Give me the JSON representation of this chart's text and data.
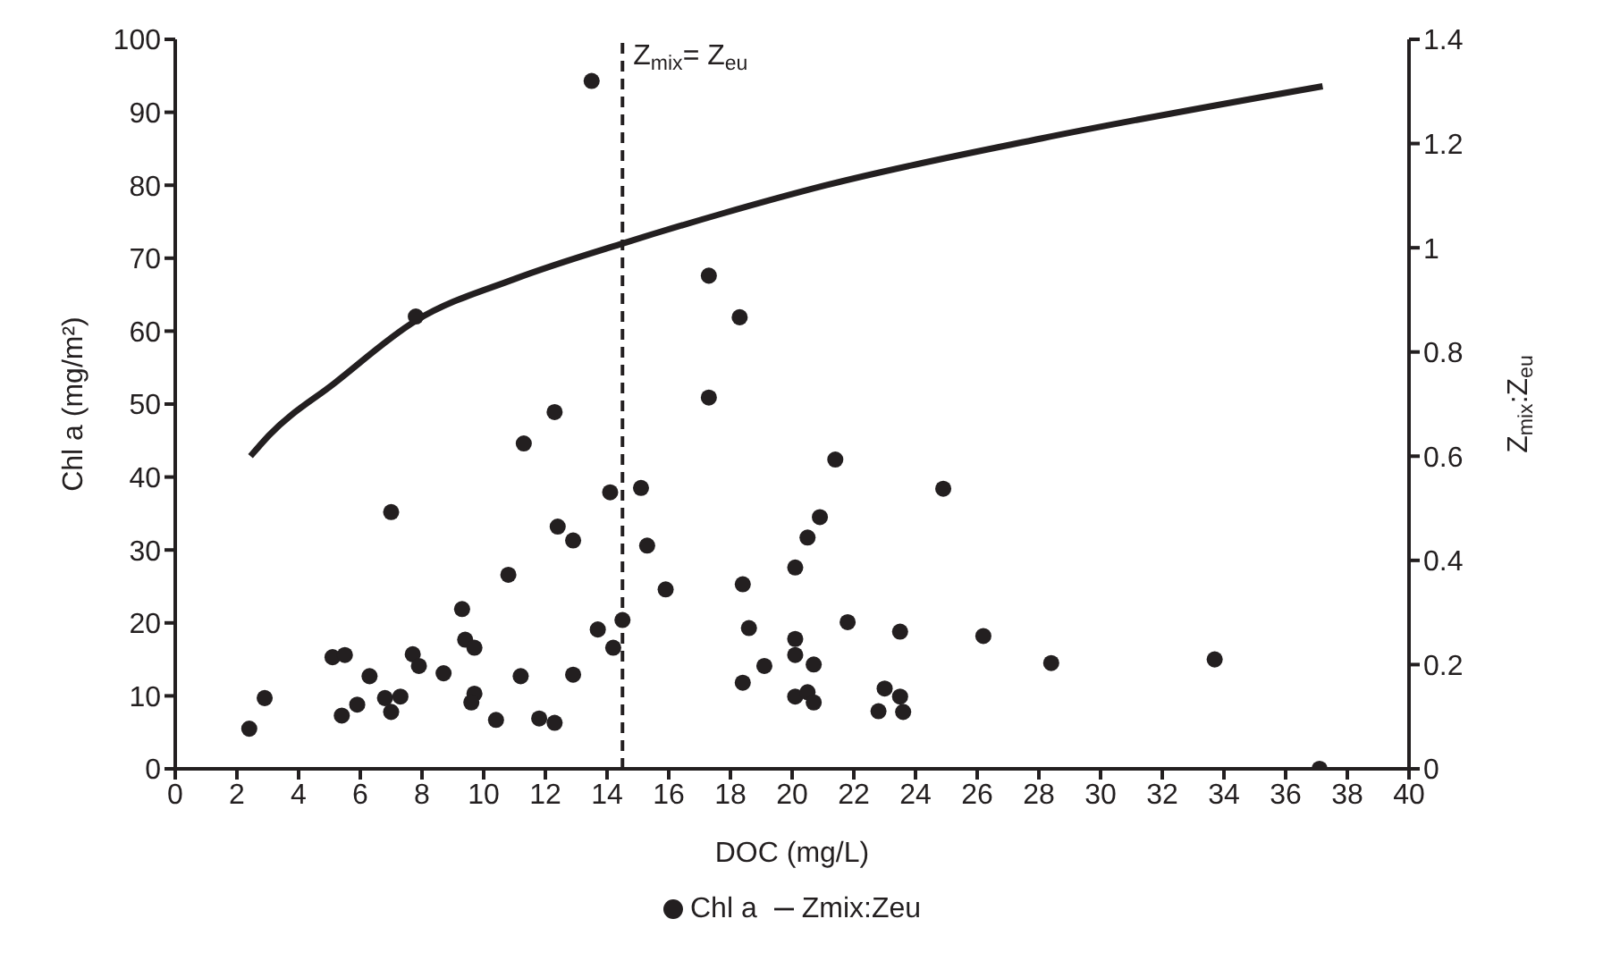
{
  "chart_data": {
    "type": "scatter",
    "xlabel": "DOC (mg/L)",
    "ylabel": "Chl a (mg/m²)",
    "y2label": "Z$_{mix}$:Z$_{eu}$",
    "xlim": [
      0,
      40
    ],
    "xticks": [
      0,
      2,
      4,
      6,
      8,
      10,
      12,
      14,
      16,
      18,
      20,
      22,
      24,
      26,
      28,
      30,
      32,
      34,
      36,
      38,
      40
    ],
    "ylim": [
      0,
      100
    ],
    "yticks": [
      0,
      10,
      20,
      30,
      40,
      50,
      60,
      70,
      80,
      90,
      100
    ],
    "y2lim": [
      0,
      1.4
    ],
    "y2ticks": [
      0,
      0.2,
      0.4,
      0.6,
      0.8,
      1,
      1.2,
      1.4
    ],
    "grid": false,
    "legend": "bottom",
    "ref_lines": [
      {
        "axis": "x",
        "value": 14.5,
        "label": "Z$_{mix}$= Z$_{eu}$",
        "line_style": "dashed",
        "color": "#231f20"
      }
    ],
    "series": [
      {
        "name": "Chl a",
        "color": "#231f20",
        "marker": "circle",
        "x": [
          2.4,
          2.9,
          5.1,
          5.5,
          5.4,
          5.9,
          6.3,
          6.8,
          7.0,
          7.3,
          7.0,
          7.7,
          7.9,
          7.8,
          8.7,
          9.3,
          9.4,
          9.7,
          9.7,
          9.6,
          10.4,
          10.8,
          11.2,
          11.3,
          11.8,
          12.3,
          12.3,
          12.4,
          12.9,
          12.9,
          13.5,
          13.7,
          14.1,
          14.2,
          14.5,
          15.1,
          15.3,
          15.9,
          17.3,
          18.3,
          17.3,
          18.4,
          18.6,
          18.4,
          19.1,
          20.1,
          20.1,
          20.7,
          20.1,
          20.5,
          20.7,
          20.1,
          20.5,
          20.9,
          21.4,
          21.8,
          23.0,
          23.5,
          22.8,
          23.6,
          23.5,
          24.9,
          26.2,
          28.4,
          33.7,
          37.1
        ],
        "values": [
          5.5,
          9.7,
          15.3,
          15.6,
          7.3,
          8.8,
          12.7,
          9.7,
          7.8,
          9.9,
          35.2,
          15.7,
          14.1,
          62,
          13.1,
          21.9,
          17.7,
          16.6,
          10.3,
          9.1,
          6.7,
          26.6,
          12.7,
          44.6,
          6.9,
          6.3,
          48.9,
          33.2,
          31.3,
          12.9,
          94.3,
          19.1,
          37.9,
          16.6,
          20.4,
          38.5,
          30.6,
          24.6,
          67.6,
          61.9,
          50.9,
          25.3,
          19.3,
          11.8,
          14.1,
          17.8,
          15.6,
          14.3,
          9.9,
          10.5,
          9.1,
          27.6,
          31.7,
          34.5,
          42.4,
          20.1,
          11.0,
          9.9,
          7.9,
          7.8,
          18.8,
          38.4,
          18.2,
          14.5,
          15.0,
          0
        ]
      },
      {
        "name": "Zmix:Zeu",
        "type": "line",
        "axis": "y2",
        "color": "#231f20",
        "marker": "none",
        "line_style": "solid",
        "x": [
          2.44,
          3.04,
          5.16,
          7.8,
          11.0,
          14.6,
          17.7,
          21.1,
          28.1,
          37.2
        ],
        "values": [
          0.6,
          0.64,
          0.74,
          0.86,
          0.94,
          1.01,
          1.065,
          1.12,
          1.21,
          1.31
        ]
      }
    ]
  }
}
